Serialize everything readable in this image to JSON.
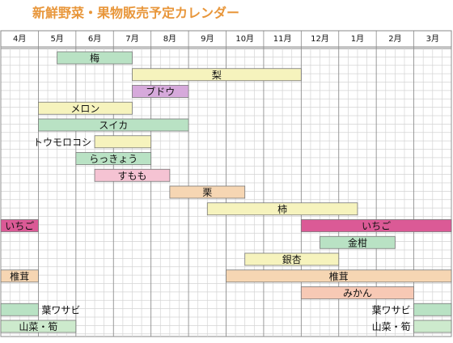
{
  "chart_data": {
    "type": "gantt",
    "title": "新鮮野菜・果物販売予定カレンダー",
    "categories": [
      "4月",
      "5月",
      "6月",
      "7月",
      "8月",
      "9月",
      "10月",
      "11月",
      "12月",
      "1月",
      "2月",
      "3月"
    ],
    "xlim": [
      0,
      12
    ],
    "xticks": [
      0,
      1,
      2,
      3,
      4,
      5,
      6,
      7,
      8,
      9,
      10,
      11,
      12
    ],
    "grid": true,
    "tasks": [
      {
        "name": "梅",
        "color": "#b9e2c4",
        "segments": [
          [
            1.5,
            3.5
          ]
        ]
      },
      {
        "name": "梨",
        "color": "#f6f3bd",
        "segments": [
          [
            3.5,
            8
          ]
        ]
      },
      {
        "name": "ブドウ",
        "color": "#d6a9db",
        "segments": [
          [
            3.5,
            5
          ]
        ]
      },
      {
        "name": "メロン",
        "color": "#f6f3bd",
        "segments": [
          [
            1,
            3.5
          ]
        ]
      },
      {
        "name": "スイカ",
        "color": "#b9e2c4",
        "segments": [
          [
            1,
            5
          ]
        ]
      },
      {
        "name": "トウモロコシ",
        "color": "#f6f3bd",
        "segments": [
          [
            2.5,
            4
          ]
        ]
      },
      {
        "name": "らっきょう",
        "color": "#b9e2c4",
        "segments": [
          [
            2,
            4
          ]
        ]
      },
      {
        "name": "すもも",
        "color": "#f5c3d3",
        "segments": [
          [
            2.5,
            4.5
          ]
        ]
      },
      {
        "name": "栗",
        "color": "#f6d6b3",
        "segments": [
          [
            4.5,
            6.5
          ]
        ]
      },
      {
        "name": "柿",
        "color": "#f6f3bd",
        "segments": [
          [
            5.5,
            9.5
          ]
        ]
      },
      {
        "name": "いちご",
        "color": "#db5a96",
        "segments": [
          [
            0,
            1
          ],
          [
            8,
            12
          ]
        ]
      },
      {
        "name": "金柑",
        "color": "#b9e2c4",
        "segments": [
          [
            8.5,
            10.5
          ]
        ]
      },
      {
        "name": "銀杏",
        "color": "#f6f3bd",
        "segments": [
          [
            6.5,
            9
          ]
        ]
      },
      {
        "name": "椎茸",
        "color": "#f6d6b3",
        "segments": [
          [
            0,
            1
          ],
          [
            6,
            12
          ]
        ]
      },
      {
        "name": "みかん",
        "color": "#f7c9b5",
        "segments": [
          [
            8,
            11
          ]
        ]
      },
      {
        "name": "葉ワサビ",
        "color": "#b9e2c4",
        "segments": [
          [
            0,
            1
          ],
          [
            11,
            12
          ]
        ]
      },
      {
        "name": "山菜・筍",
        "color": "#cdeacd",
        "segments": [
          [
            0,
            2
          ],
          [
            11,
            12
          ]
        ]
      }
    ]
  }
}
